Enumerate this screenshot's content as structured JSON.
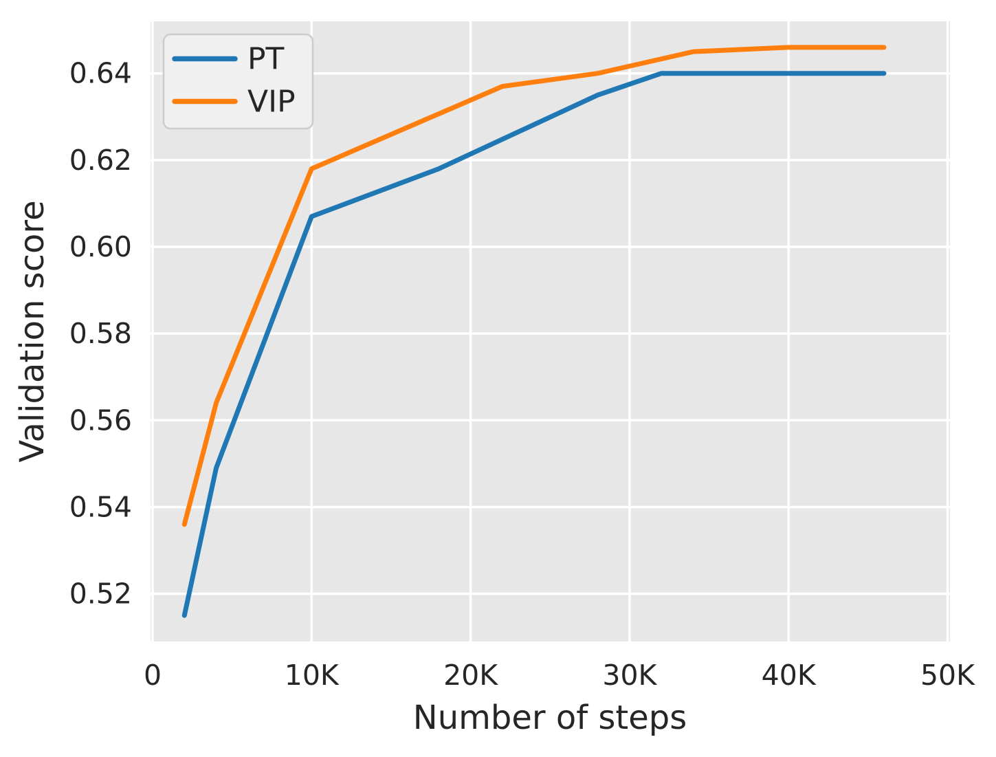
{
  "chart_data": {
    "type": "line",
    "title": "",
    "xlabel": "Number of steps",
    "ylabel": "Validation score",
    "xlim": [
      0,
      50000
    ],
    "ylim": [
      0.509,
      0.652
    ],
    "grid": true,
    "legend_position": "upper left",
    "x_ticks": {
      "values": [
        0,
        10000,
        20000,
        30000,
        40000,
        50000
      ],
      "labels": [
        "0",
        "10K",
        "20K",
        "30K",
        "40K",
        "50K"
      ]
    },
    "y_ticks": {
      "values": [
        0.52,
        0.54,
        0.56,
        0.58,
        0.6,
        0.62,
        0.64
      ],
      "labels": [
        "0.52",
        "0.54",
        "0.56",
        "0.58",
        "0.60",
        "0.62",
        "0.64"
      ]
    },
    "series": [
      {
        "name": "PT",
        "color": "#1f77b4",
        "x": [
          2000,
          4000,
          10000,
          18000,
          28000,
          32000,
          46000
        ],
        "y": [
          0.515,
          0.549,
          0.607,
          0.618,
          0.635,
          0.64,
          0.64
        ]
      },
      {
        "name": "VIP",
        "color": "#ff7f0e",
        "x": [
          2000,
          4000,
          10000,
          22000,
          28000,
          34000,
          40000,
          46000
        ],
        "y": [
          0.536,
          0.564,
          0.618,
          0.637,
          0.64,
          0.645,
          0.646,
          0.646
        ]
      }
    ],
    "colors": {
      "plot_bg": "#e7e7e7",
      "gridline": "#ffffff",
      "text": "#262626",
      "legend_bg": "#f0f0f0",
      "legend_border": "#cccccc"
    }
  }
}
